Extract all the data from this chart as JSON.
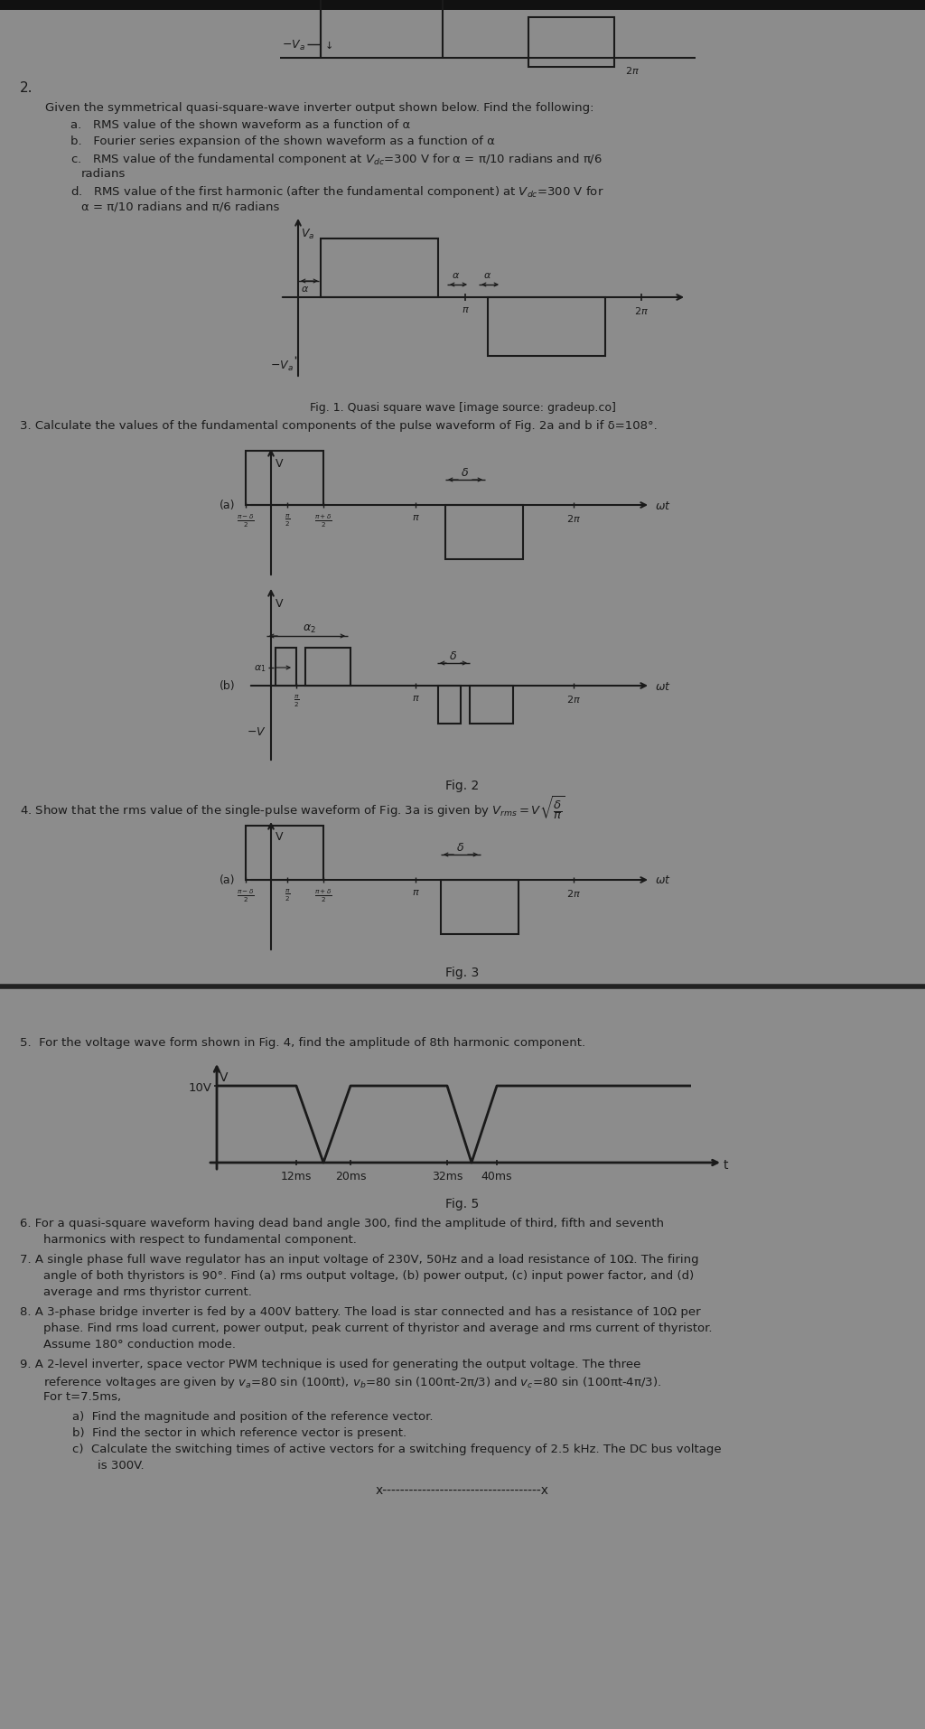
{
  "bg_color": "#8c8c8c",
  "text_color": "#1a1a1a",
  "line_color": "#1a1a1a",
  "dark_bar": "#2a2a2a"
}
